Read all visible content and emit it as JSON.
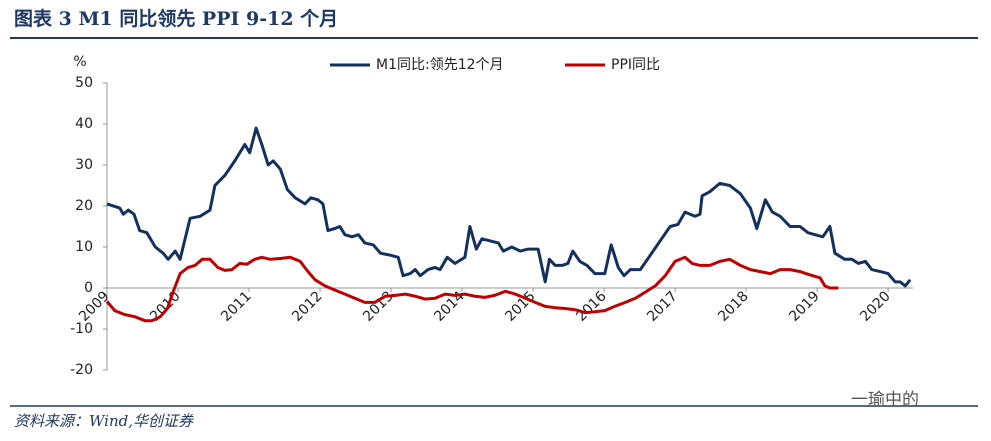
{
  "chart_data": {
    "type": "line",
    "title": "图表 3   M1 同比领先 PPI 9-12 个月",
    "y_label": "%",
    "source": "资料来源：Wind,华创证券",
    "watermark": "一瑜中的",
    "xlim": [
      2009,
      2020.35
    ],
    "xticks": [
      2009,
      2010,
      2011,
      2012,
      2013,
      2014,
      2015,
      2016,
      2017,
      2018,
      2019,
      2020
    ],
    "ylim": [
      -20,
      50
    ],
    "yticks": [
      -20,
      -10,
      0,
      10,
      20,
      30,
      40,
      50
    ],
    "legend": "top",
    "series": [
      {
        "name": "M1同比:领先12个月",
        "color": "#14305f",
        "x": [
          2009,
          2009.18,
          2009.23,
          2009.3,
          2009.38,
          2009.46,
          2009.56,
          2009.68,
          2009.79,
          2009.86,
          2009.96,
          2010.03,
          2010.17,
          2010.31,
          2010.45,
          2010.52,
          2010.66,
          2010.8,
          2010.94,
          2011.01,
          2011.1,
          2011.18,
          2011.27,
          2011.34,
          2011.44,
          2011.54,
          2011.65,
          2011.79,
          2011.87,
          2011.97,
          2012.04,
          2012.11,
          2012.21,
          2012.28,
          2012.35,
          2012.45,
          2012.54,
          2012.63,
          2012.75,
          2012.85,
          2012.99,
          2013.1,
          2013.17,
          2013.27,
          2013.34,
          2013.41,
          2013.52,
          2013.62,
          2013.69,
          2013.79,
          2013.9,
          2014.04,
          2014.11,
          2014.2,
          2014.28,
          2014.39,
          2014.51,
          2014.58,
          2014.7,
          2014.82,
          2014.93,
          2015.07,
          2015.17,
          2015.23,
          2015.31,
          2015.41,
          2015.49,
          2015.56,
          2015.66,
          2015.76,
          2015.87,
          2016.01,
          2016.1,
          2016.2,
          2016.28,
          2016.37,
          2016.51,
          2016.65,
          2016.79,
          2016.93,
          2017.04,
          2017.14,
          2017.28,
          2017.35,
          2017.38,
          2017.49,
          2017.63,
          2017.77,
          2017.92,
          2018.06,
          2018.15,
          2018.27,
          2018.37,
          2018.48,
          2018.62,
          2018.76,
          2018.87,
          2018.97,
          2019.08,
          2019.18,
          2019.25,
          2019.39,
          2019.49,
          2019.58,
          2019.68,
          2019.77,
          2019.89,
          2020,
          2020.1,
          2020.17,
          2020.24,
          2020.31
        ],
        "values": [
          20.5,
          19.5,
          18,
          19,
          18,
          14,
          13.5,
          10,
          8.5,
          7,
          9,
          7,
          17,
          17.5,
          19,
          25,
          27.5,
          31,
          35,
          33,
          39,
          35,
          30,
          31,
          29,
          24,
          22,
          20.5,
          22,
          21.5,
          20.5,
          14,
          14.5,
          15,
          13,
          12.5,
          13,
          11,
          10.5,
          8.5,
          8,
          7.5,
          3,
          3.5,
          4.5,
          3,
          4.5,
          5,
          4.5,
          7.5,
          6,
          7.5,
          15,
          9.5,
          12,
          11.5,
          11,
          9,
          10,
          9,
          9.5,
          9.5,
          1.5,
          7,
          5.5,
          5.5,
          6,
          9,
          6.5,
          5.5,
          3.5,
          3.5,
          10.5,
          5,
          3,
          4.5,
          4.5,
          8,
          11.5,
          15,
          15.5,
          18.5,
          17.5,
          18,
          22.5,
          23.5,
          25.5,
          25,
          23,
          19.5,
          14.5,
          21.5,
          18.5,
          17.5,
          15,
          15,
          13.5,
          13,
          12.5,
          15,
          8.5,
          7,
          7,
          6,
          6.5,
          4.5,
          4,
          3.5,
          1.5,
          1.5,
          0.5,
          2
        ]
      },
      {
        "name": "PPI同比",
        "color": "#c00000",
        "x": [
          2009,
          2009.11,
          2009.25,
          2009.39,
          2009.54,
          2009.63,
          2009.75,
          2009.85,
          2009.93,
          2010.03,
          2010.14,
          2010.24,
          2010.34,
          2010.45,
          2010.56,
          2010.66,
          2010.76,
          2010.87,
          2010.97,
          2011.08,
          2011.18,
          2011.3,
          2011.44,
          2011.58,
          2011.72,
          2011.83,
          2011.93,
          2012.07,
          2012.21,
          2012.35,
          2012.49,
          2012.63,
          2012.77,
          2012.92,
          2013.06,
          2013.2,
          2013.34,
          2013.48,
          2013.62,
          2013.76,
          2013.9,
          2014.04,
          2014.18,
          2014.32,
          2014.46,
          2014.61,
          2014.75,
          2014.89,
          2015.03,
          2015.17,
          2015.31,
          2015.45,
          2015.59,
          2015.73,
          2015.87,
          2016.01,
          2016.15,
          2016.3,
          2016.44,
          2016.58,
          2016.72,
          2016.86,
          2017,
          2017.14,
          2017.24,
          2017.35,
          2017.49,
          2017.63,
          2017.77,
          2017.92,
          2018.06,
          2018.2,
          2018.34,
          2018.48,
          2018.62,
          2018.76,
          2018.9,
          2019.04,
          2019.11,
          2019.18,
          2019.3
        ],
        "values": [
          -3.3,
          -5.5,
          -6.5,
          -7,
          -8,
          -8,
          -7,
          -5,
          -1,
          3.5,
          5,
          5.5,
          7,
          7,
          5,
          4.3,
          4.5,
          6,
          5.8,
          7,
          7.5,
          7,
          7.2,
          7.5,
          6.5,
          4,
          2,
          0.5,
          -0.5,
          -1.5,
          -2.5,
          -3.5,
          -3.5,
          -2,
          -1.8,
          -1.5,
          -2,
          -2.7,
          -2.5,
          -1.5,
          -1.8,
          -1.5,
          -2,
          -2.3,
          -1.8,
          -0.8,
          -1.5,
          -2.5,
          -3.5,
          -4.5,
          -4.8,
          -5,
          -5.3,
          -6,
          -5.8,
          -5.5,
          -4.5,
          -3.5,
          -2.5,
          -1,
          0.5,
          3,
          6.5,
          7.5,
          6,
          5.5,
          5.5,
          6.5,
          7,
          5.5,
          4.5,
          4,
          3.5,
          4.5,
          4.5,
          4,
          3.2,
          2.5,
          0.5,
          0,
          0
        ]
      }
    ]
  }
}
